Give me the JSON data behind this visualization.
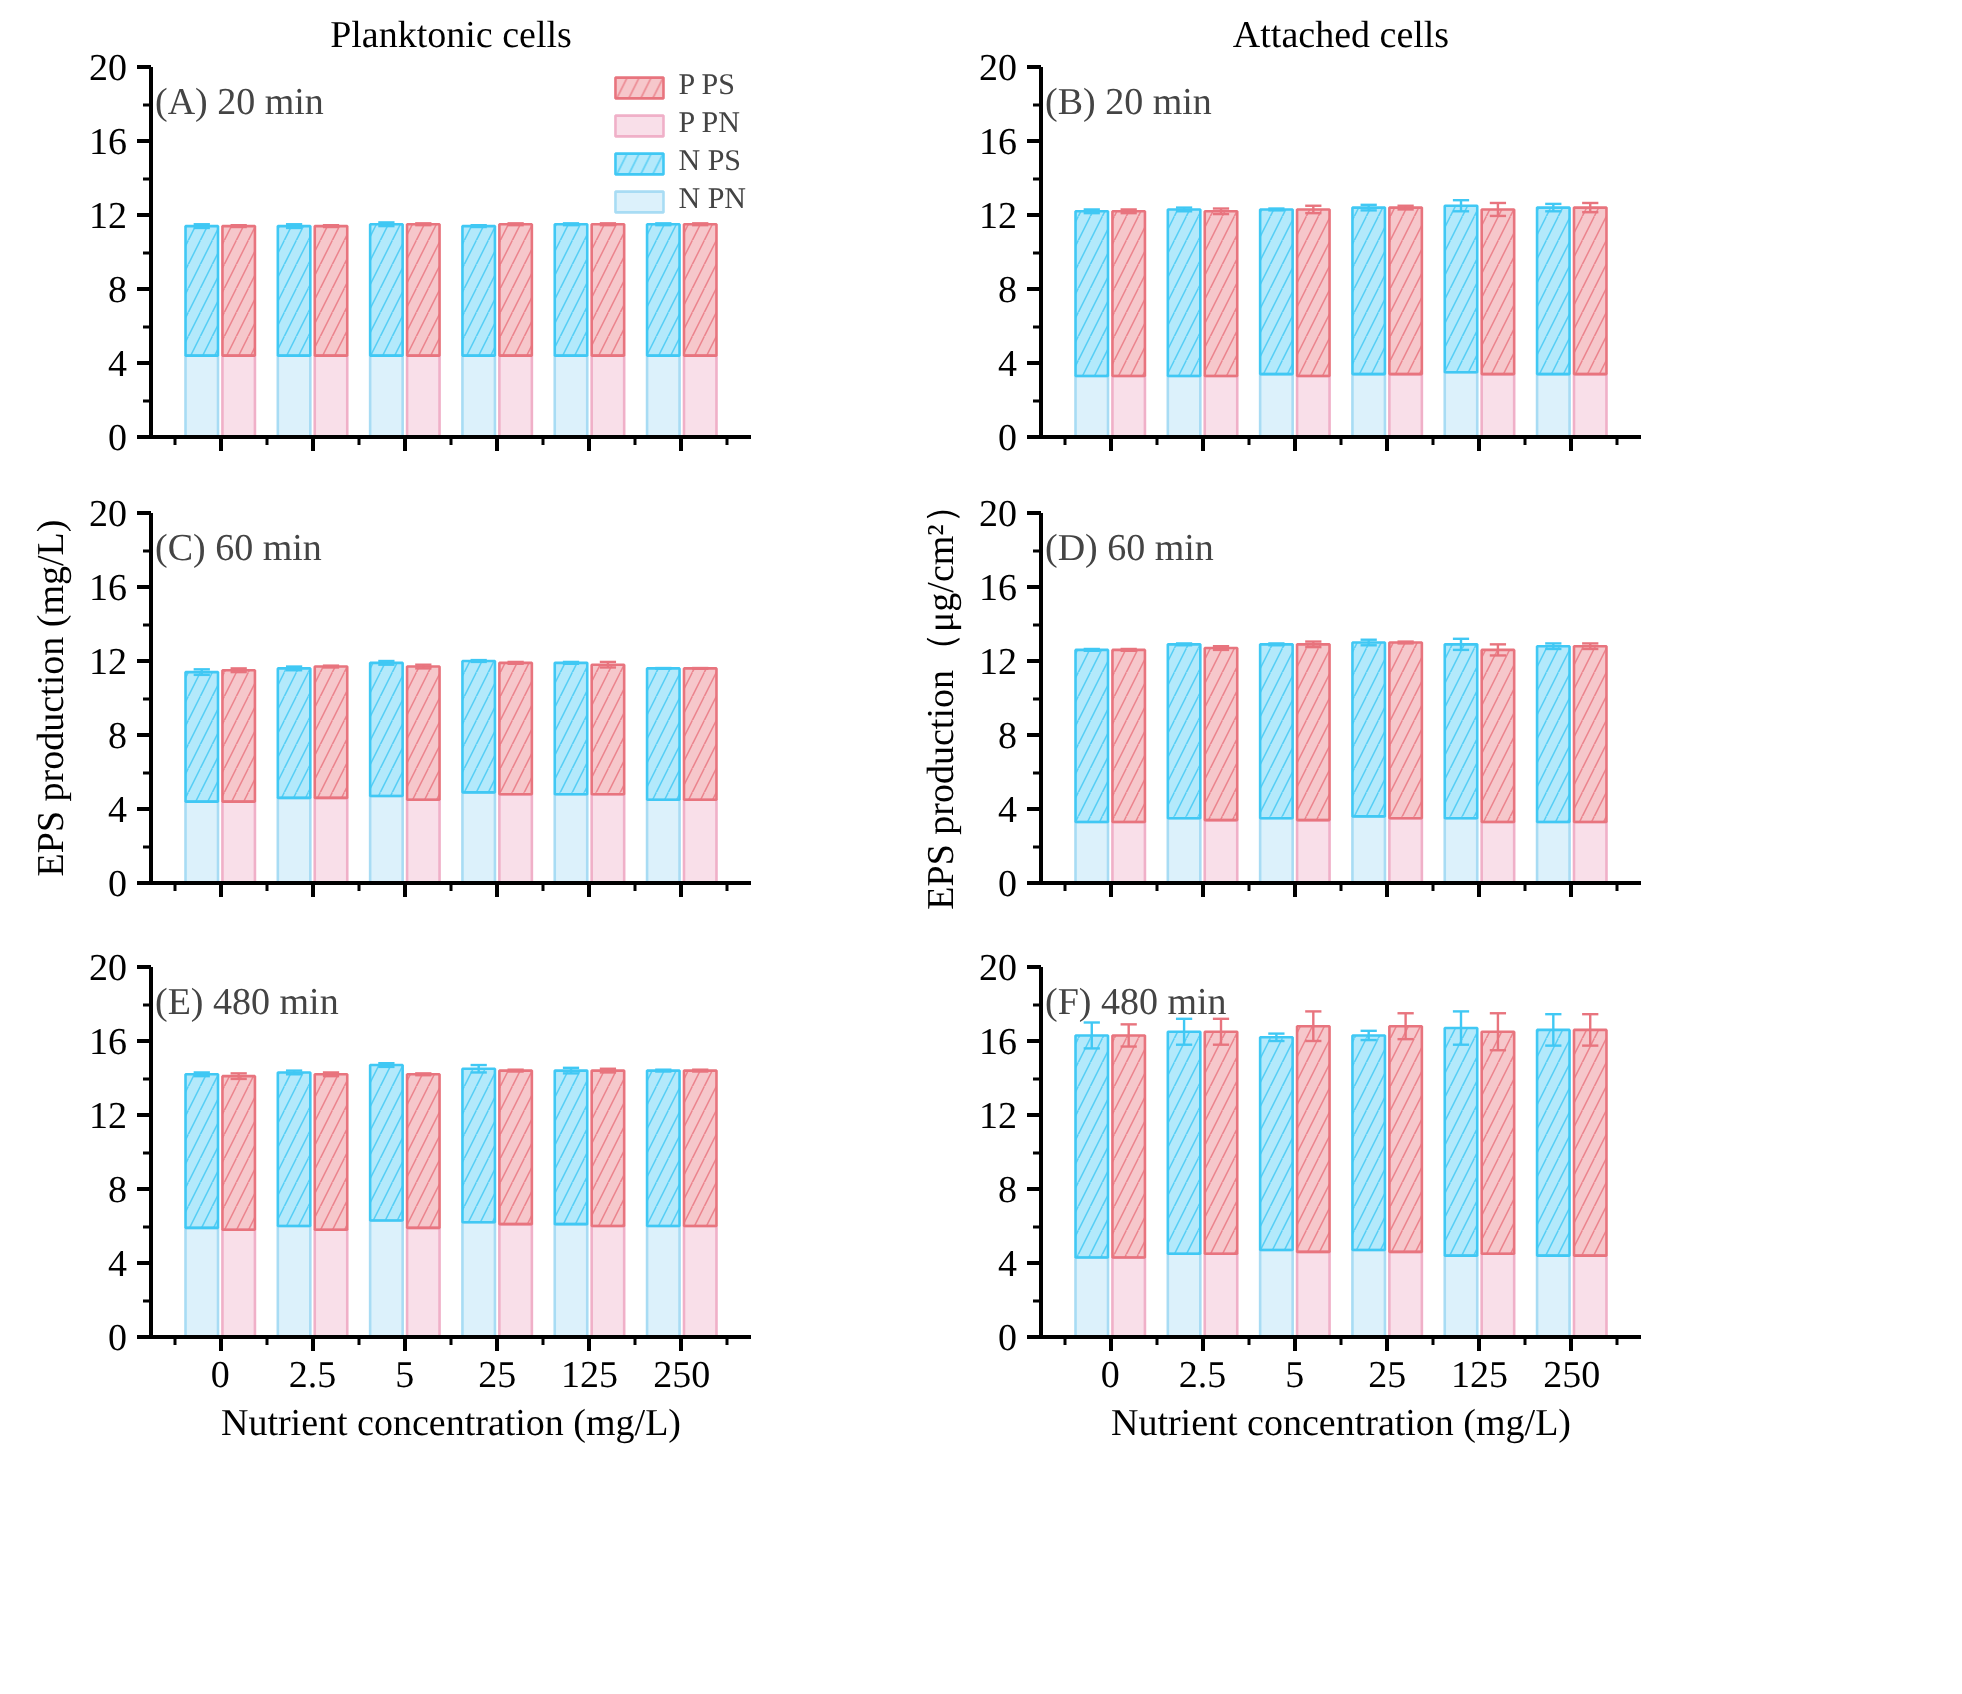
{
  "chart_data": [
    {
      "type": "bar",
      "title": "(A) 20 min",
      "subtitle": "Planktonic cells",
      "legend": "top right",
      "tick_labels": "y",
      "categories": [
        "0",
        "2.5",
        "5",
        "25",
        "125",
        "250"
      ],
      "ylim": [
        0,
        20
      ],
      "yticks": [
        0,
        4,
        8,
        12,
        16,
        20
      ],
      "series": [
        {
          "name": "N PN",
          "color": "#a8dcf4",
          "values": [
            4.4,
            4.4,
            4.4,
            4.4,
            4.4,
            4.4
          ]
        },
        {
          "name": "N PS",
          "color": "#40c8f4",
          "base": [
            4.4,
            4.4,
            4.4,
            4.4,
            4.4,
            4.4
          ],
          "values": [
            7.0,
            7.0,
            7.1,
            7.0,
            7.1,
            7.1
          ],
          "errors": [
            0.1,
            0.1,
            0.1,
            0.05,
            0.05,
            0.05
          ]
        },
        {
          "name": "P PN",
          "color": "#f0b0c8",
          "values": [
            4.4,
            4.4,
            4.4,
            4.4,
            4.4,
            4.4
          ]
        },
        {
          "name": "P PS",
          "color": "#e8747e",
          "base": [
            4.4,
            4.4,
            4.4,
            4.4,
            4.4,
            4.4
          ],
          "values": [
            7.0,
            7.0,
            7.1,
            7.1,
            7.1,
            7.1
          ],
          "errors": [
            0.05,
            0.05,
            0.05,
            0.05,
            0.05,
            0.05
          ]
        }
      ]
    },
    {
      "type": "bar",
      "title": "(B) 20 min",
      "subtitle": "Attached cells",
      "tick_labels": "y",
      "categories": [
        "0",
        "2.5",
        "5",
        "25",
        "125",
        "250"
      ],
      "ylim": [
        0,
        20
      ],
      "yticks": [
        0,
        4,
        8,
        12,
        16,
        20
      ],
      "series": [
        {
          "color": "#a8dcf4",
          "values": [
            3.3,
            3.3,
            3.4,
            3.4,
            3.5,
            3.4
          ]
        },
        {
          "color": "#40c8f4",
          "base": [
            3.3,
            3.3,
            3.4,
            3.4,
            3.5,
            3.4
          ],
          "values": [
            8.9,
            9.0,
            8.9,
            9.0,
            9.0,
            9.0
          ],
          "errors": [
            0.1,
            0.1,
            0.05,
            0.15,
            0.3,
            0.2
          ]
        },
        {
          "color": "#f0b0c8",
          "values": [
            3.3,
            3.3,
            3.3,
            3.4,
            3.4,
            3.4
          ]
        },
        {
          "color": "#e8747e",
          "base": [
            3.3,
            3.3,
            3.3,
            3.4,
            3.4,
            3.4
          ],
          "values": [
            8.9,
            8.9,
            9.0,
            9.0,
            8.9,
            9.0
          ],
          "errors": [
            0.1,
            0.15,
            0.2,
            0.1,
            0.35,
            0.25
          ]
        }
      ]
    },
    {
      "type": "bar",
      "title": "(C) 60 min",
      "ylabel": "EPS production (mg/L)",
      "tick_labels": "y",
      "categories": [
        "0",
        "2.5",
        "5",
        "25",
        "125",
        "250"
      ],
      "ylim": [
        0,
        20
      ],
      "yticks": [
        0,
        4,
        8,
        12,
        16,
        20
      ],
      "series": [
        {
          "color": "#a8dcf4",
          "values": [
            4.4,
            4.6,
            4.7,
            4.9,
            4.8,
            4.5
          ]
        },
        {
          "color": "#40c8f4",
          "base": [
            4.4,
            4.6,
            4.7,
            4.9,
            4.8,
            4.5
          ],
          "values": [
            7.0,
            7.0,
            7.2,
            7.1,
            7.1,
            7.1
          ],
          "errors": [
            0.15,
            0.1,
            0.1,
            0.05,
            0.05,
            0.02
          ]
        },
        {
          "color": "#f0b0c8",
          "values": [
            4.4,
            4.6,
            4.5,
            4.8,
            4.8,
            4.5
          ]
        },
        {
          "color": "#e8747e",
          "base": [
            4.4,
            4.6,
            4.5,
            4.8,
            4.8,
            4.5
          ],
          "values": [
            7.1,
            7.1,
            7.2,
            7.1,
            7.0,
            7.1
          ],
          "errors": [
            0.1,
            0.05,
            0.1,
            0.05,
            0.15,
            0.02
          ]
        }
      ]
    },
    {
      "type": "bar",
      "title": "(D) 60 min",
      "ylabel": "EPS production（μg/cm²）",
      "tick_labels": "y",
      "categories": [
        "0",
        "2.5",
        "5",
        "25",
        "125",
        "250"
      ],
      "ylim": [
        0,
        20
      ],
      "yticks": [
        0,
        4,
        8,
        12,
        16,
        20
      ],
      "series": [
        {
          "color": "#a8dcf4",
          "values": [
            3.3,
            3.5,
            3.5,
            3.6,
            3.5,
            3.3
          ]
        },
        {
          "color": "#40c8f4",
          "base": [
            3.3,
            3.5,
            3.5,
            3.6,
            3.5,
            3.3
          ],
          "values": [
            9.3,
            9.4,
            9.4,
            9.4,
            9.4,
            9.5
          ],
          "errors": [
            0.05,
            0.05,
            0.05,
            0.15,
            0.3,
            0.15
          ]
        },
        {
          "color": "#f0b0c8",
          "values": [
            3.3,
            3.4,
            3.4,
            3.5,
            3.3,
            3.3
          ]
        },
        {
          "color": "#e8747e",
          "base": [
            3.3,
            3.4,
            3.4,
            3.5,
            3.3,
            3.3
          ],
          "values": [
            9.3,
            9.3,
            9.5,
            9.5,
            9.3,
            9.5
          ],
          "errors": [
            0.05,
            0.1,
            0.15,
            0.05,
            0.3,
            0.15
          ]
        }
      ]
    },
    {
      "type": "bar",
      "title": "(E) 480 min",
      "xlabel": "Nutrient concentration (mg/L)",
      "categories": [
        "0",
        "2.5",
        "5",
        "25",
        "125",
        "250"
      ],
      "ylim": [
        0,
        20
      ],
      "yticks": [
        0,
        4,
        8,
        12,
        16,
        20
      ],
      "series": [
        {
          "color": "#a8dcf4",
          "values": [
            5.9,
            6.0,
            6.3,
            6.2,
            6.1,
            6.0
          ]
        },
        {
          "color": "#40c8f4",
          "base": [
            5.9,
            6.0,
            6.3,
            6.2,
            6.1,
            6.0
          ],
          "values": [
            8.3,
            8.3,
            8.4,
            8.3,
            8.3,
            8.4
          ],
          "errors": [
            0.1,
            0.1,
            0.1,
            0.2,
            0.15,
            0.05
          ]
        },
        {
          "color": "#f0b0c8",
          "values": [
            5.8,
            5.8,
            5.9,
            6.1,
            6.0,
            6.0
          ]
        },
        {
          "color": "#e8747e",
          "base": [
            5.8,
            5.8,
            5.9,
            6.1,
            6.0,
            6.0
          ],
          "values": [
            8.3,
            8.4,
            8.3,
            8.3,
            8.4,
            8.4
          ],
          "errors": [
            0.15,
            0.1,
            0.05,
            0.05,
            0.1,
            0.05
          ]
        }
      ]
    },
    {
      "type": "bar",
      "title": "(F) 480 min",
      "xlabel": "Nutrient concentration (mg/L)",
      "categories": [
        "0",
        "2.5",
        "5",
        "25",
        "125",
        "250"
      ],
      "ylim": [
        0,
        20
      ],
      "yticks": [
        0,
        4,
        8,
        12,
        16,
        20
      ],
      "series": [
        {
          "color": "#a8dcf4",
          "values": [
            4.3,
            4.5,
            4.7,
            4.7,
            4.4,
            4.4
          ]
        },
        {
          "color": "#40c8f4",
          "base": [
            4.3,
            4.5,
            4.7,
            4.7,
            4.4,
            4.4
          ],
          "values": [
            12.0,
            12.0,
            11.5,
            11.6,
            12.3,
            12.2
          ],
          "errors": [
            0.7,
            0.7,
            0.2,
            0.25,
            0.9,
            0.85
          ]
        },
        {
          "color": "#f0b0c8",
          "values": [
            4.3,
            4.5,
            4.6,
            4.6,
            4.5,
            4.4
          ]
        },
        {
          "color": "#e8747e",
          "base": [
            4.3,
            4.5,
            4.6,
            4.6,
            4.5,
            4.4
          ],
          "values": [
            12.0,
            12.0,
            12.2,
            12.2,
            12.0,
            12.2
          ],
          "errors": [
            0.6,
            0.7,
            0.8,
            0.7,
            1.0,
            0.85
          ]
        }
      ]
    }
  ]
}
